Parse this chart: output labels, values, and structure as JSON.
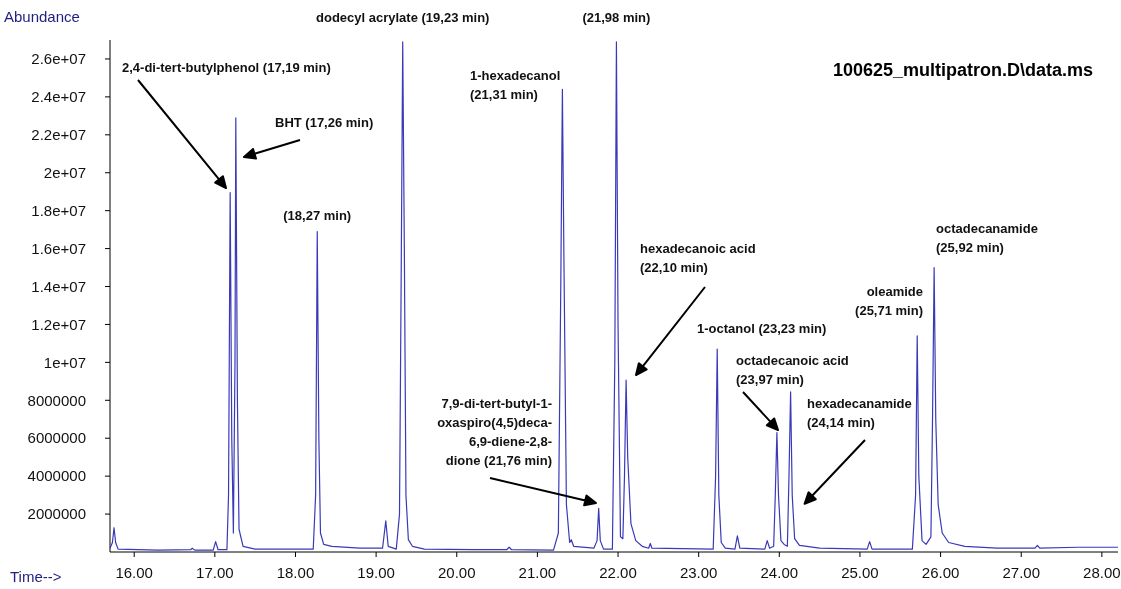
{
  "chart_data": {
    "type": "line",
    "title": "100625_multipatron.D\\data.ms",
    "xlabel": "Time-->",
    "ylabel": "Abundance",
    "xlim": [
      15.7,
      28.2
    ],
    "ylim": [
      0,
      27000000
    ],
    "xticks": [
      {
        "value": 16,
        "label": "16.00"
      },
      {
        "value": 17,
        "label": "17.00"
      },
      {
        "value": 18,
        "label": "18.00"
      },
      {
        "value": 19,
        "label": "19.00"
      },
      {
        "value": 20,
        "label": "20.00"
      },
      {
        "value": 21,
        "label": "21.00"
      },
      {
        "value": 22,
        "label": "22.00"
      },
      {
        "value": 23,
        "label": "23.00"
      },
      {
        "value": 24,
        "label": "24.00"
      },
      {
        "value": 25,
        "label": "25.00"
      },
      {
        "value": 26,
        "label": "26.00"
      },
      {
        "value": 27,
        "label": "27.00"
      },
      {
        "value": 28,
        "label": "28.00"
      }
    ],
    "yticks": [
      2000000,
      4000000,
      6000000,
      8000000,
      {
        "value": 10000000,
        "label": "1e+07"
      },
      {
        "value": 12000000,
        "label": "1.2e+07"
      },
      {
        "value": 14000000,
        "label": "1.4e+07"
      },
      {
        "value": 16000000,
        "label": "1.6e+07"
      },
      {
        "value": 18000000,
        "label": "1.8e+07"
      },
      {
        "value": 20000000,
        "label": "2e+07"
      },
      {
        "value": 22000000,
        "label": "2.2e+07"
      },
      {
        "value": 24000000,
        "label": "2.4e+07"
      },
      {
        "value": 26000000,
        "label": "2.6e+07"
      }
    ],
    "grid": false,
    "legend": false,
    "marker": "none",
    "line_style": "solid",
    "series": [
      {
        "color": "#3a3ab8",
        "x": [
          15.7,
          15.73,
          15.75,
          15.77,
          15.8,
          16.3,
          16.7,
          16.72,
          16.75,
          16.98,
          17.01,
          17.04,
          17.15,
          17.17,
          17.19,
          17.21,
          17.23,
          17.25,
          17.26,
          17.28,
          17.3,
          17.35,
          17.5,
          18.22,
          18.25,
          18.27,
          18.29,
          18.31,
          18.35,
          18.45,
          18.8,
          19.08,
          19.12,
          19.15,
          19.25,
          19.29,
          19.31,
          19.33,
          19.35,
          19.37,
          19.4,
          19.45,
          19.6,
          20.2,
          20.62,
          20.65,
          20.68,
          21.2,
          21.26,
          21.29,
          21.31,
          21.33,
          21.36,
          21.4,
          21.42,
          21.45,
          21.7,
          21.74,
          21.76,
          21.78,
          21.82,
          21.93,
          21.96,
          21.98,
          22.0,
          22.03,
          22.06,
          22.08,
          22.1,
          22.12,
          22.16,
          22.22,
          22.3,
          22.38,
          22.4,
          22.42,
          23.18,
          23.21,
          23.23,
          23.25,
          23.28,
          23.33,
          23.45,
          23.48,
          23.51,
          23.82,
          23.85,
          23.88,
          23.93,
          23.95,
          23.97,
          23.99,
          24.02,
          24.06,
          24.1,
          24.12,
          24.14,
          24.16,
          24.19,
          24.25,
          24.5,
          25.09,
          25.12,
          25.15,
          25.65,
          25.69,
          25.71,
          25.73,
          25.77,
          25.82,
          25.88,
          25.9,
          25.92,
          25.94,
          25.97,
          26.02,
          26.1,
          26.3,
          26.7,
          27.17,
          27.2,
          27.23,
          27.7,
          28.2
        ],
        "values": [
          200000,
          500000,
          1280000,
          500000,
          150000,
          100000,
          120000,
          200000,
          100000,
          100000,
          550000,
          120000,
          120000,
          3000000,
          18950000,
          6000000,
          1000000,
          10000000,
          22900000,
          8000000,
          1200000,
          300000,
          150000,
          150000,
          3000000,
          16900000,
          6000000,
          1000000,
          400000,
          300000,
          200000,
          200000,
          1640000,
          300000,
          150000,
          2000000,
          14000000,
          26900000,
          16000000,
          3000000,
          650000,
          300000,
          150000,
          120000,
          120000,
          250000,
          120000,
          100000,
          1000000,
          14000000,
          24400000,
          15000000,
          2500000,
          500000,
          650000,
          300000,
          200000,
          600000,
          2300000,
          600000,
          150000,
          150000,
          10000000,
          26900000,
          12000000,
          800000,
          700000,
          4000000,
          9060000,
          5000000,
          1500000,
          600000,
          300000,
          200000,
          450000,
          200000,
          150000,
          4000000,
          10700000,
          3000000,
          500000,
          200000,
          150000,
          850000,
          200000,
          150000,
          600000,
          200000,
          300000,
          3000000,
          6300000,
          3000000,
          600000,
          400000,
          300000,
          4000000,
          8450000,
          3000000,
          700000,
          350000,
          200000,
          150000,
          550000,
          150000,
          150000,
          3000000,
          11400000,
          4000000,
          600000,
          400000,
          800000,
          7000000,
          15000000,
          7000000,
          2500000,
          1000000,
          500000,
          300000,
          200000,
          200000,
          350000,
          200000,
          250000,
          250000
        ]
      }
    ],
    "annotations": [
      "2,4-di-tert-butylphenol (17,19 min)",
      "BHT (17,26 min)",
      {
        "text": "(18,27 min)",
        "x": 18.27,
        "y": 16900000
      },
      {
        "text": "dodecyl acrylate (19,23 min)",
        "x": 19.33,
        "y": 26900000
      },
      {
        "text": "1-hexadecanol (21,31 min)",
        "x": 21.31,
        "y": 24400000
      },
      {
        "text": "(21,98 min)",
        "x": 21.98,
        "y": 26900000
      },
      "7,9-di-tert-butyl-1-oxaspiro(4,5)deca-6,9-diene-2,8-dione (21,76 min)",
      "hexadecanoic acid (22,10 min)",
      {
        "text": "1-octanol (23,23 min)",
        "x": 23.23,
        "y": 10700000
      },
      "octadecanoic acid (23,97 min)",
      {
        "text": "hexadecanamide (24,14 min)",
        "x": 24.14,
        "y": 8450000
      },
      {
        "text": "oleamide (25,71 min)",
        "x": 25.71,
        "y": 11400000
      },
      {
        "text": "octadecanamide (25,92 min)",
        "x": 25.92,
        "y": 15000000
      }
    ]
  }
}
